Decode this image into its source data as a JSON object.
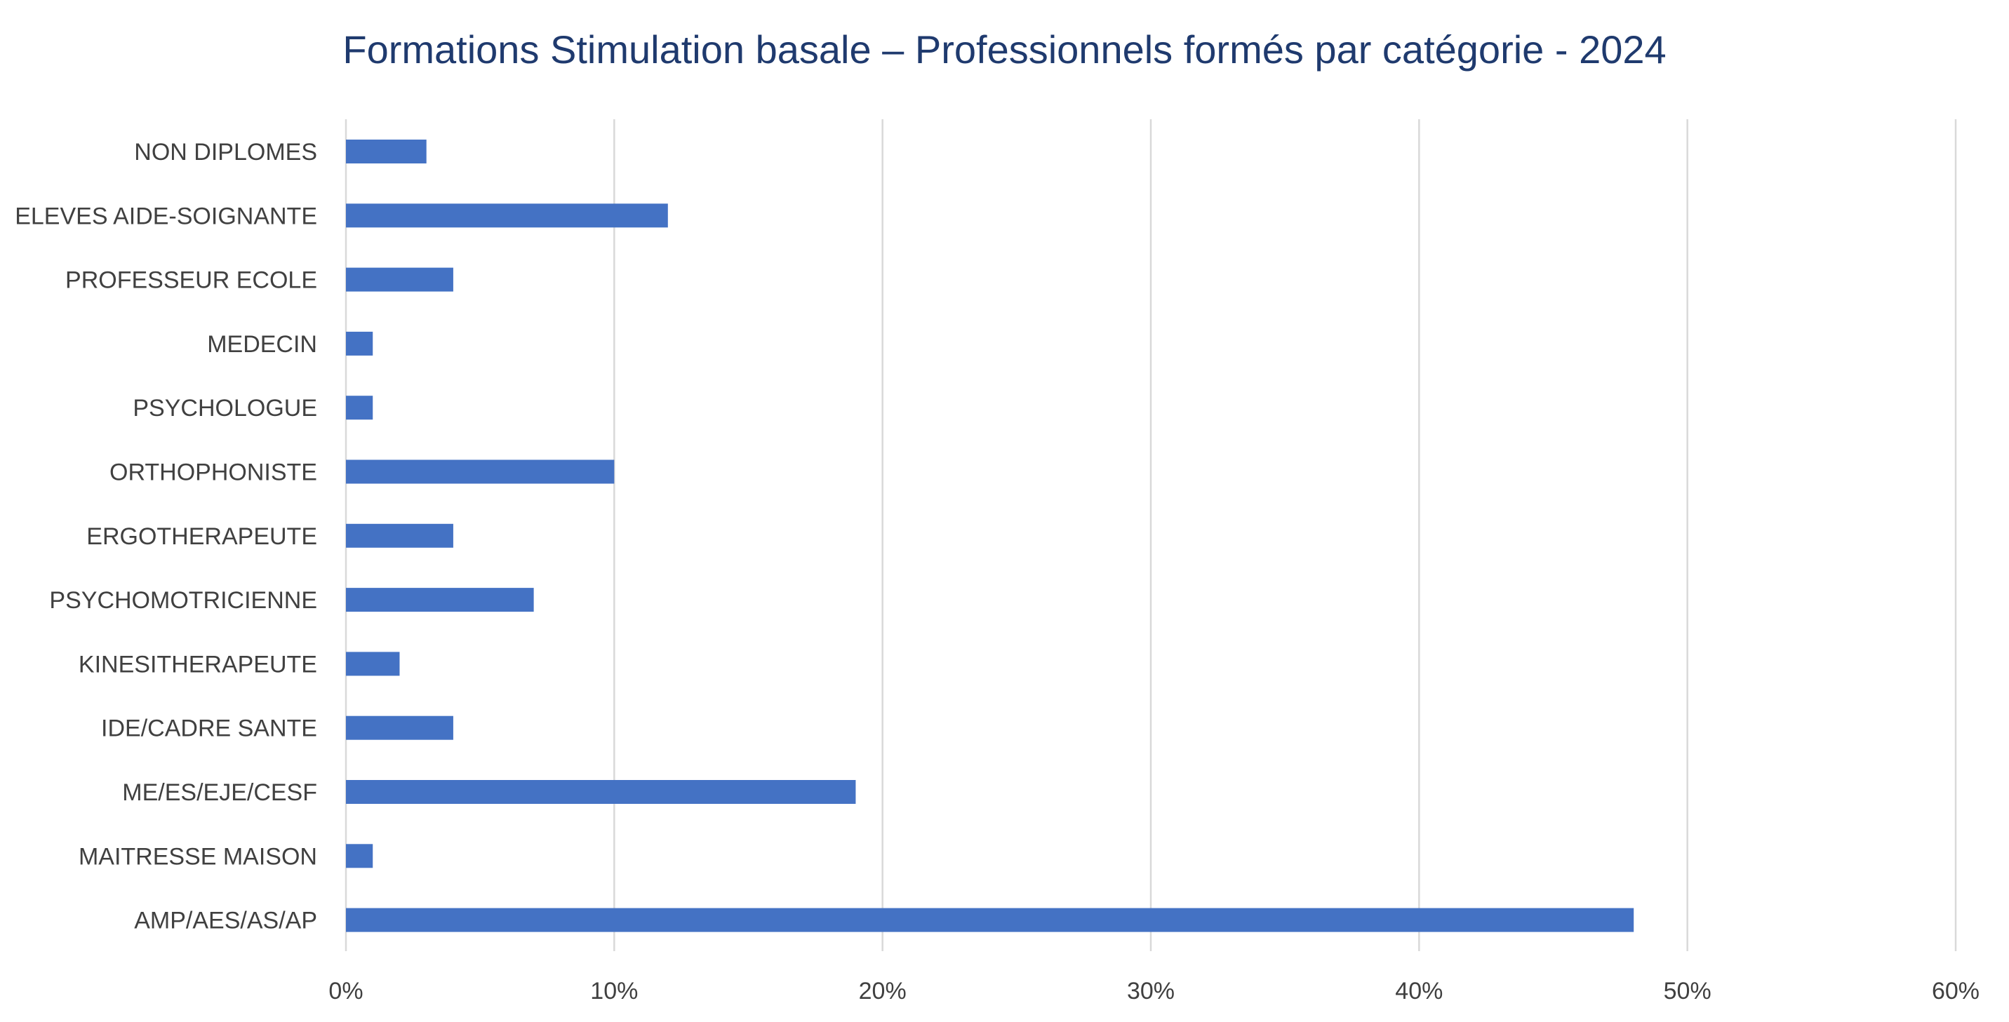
{
  "chart_data": {
    "type": "bar",
    "orientation": "horizontal",
    "title": "Formations Stimulation basale – Professionnels formés par catégorie - 2024",
    "categories": [
      "NON DIPLOMES",
      "ELEVES AIDE-SOIGNANTE",
      "PROFESSEUR ECOLE",
      "MEDECIN",
      "PSYCHOLOGUE",
      "ORTHOPHONISTE",
      "ERGOTHERAPEUTE",
      "PSYCHOMOTRICIENNE",
      "KINESITHERAPEUTE",
      "IDE/CADRE SANTE",
      "ME/ES/EJE/CESF",
      "MAITRESSE MAISON",
      "AMP/AES/AS/AP"
    ],
    "values": [
      3,
      12,
      4,
      1,
      1,
      10,
      4,
      7,
      2,
      4,
      19,
      1,
      48
    ],
    "value_unit": "%",
    "xlim": [
      0,
      60
    ],
    "x_ticks": [
      0,
      10,
      20,
      30,
      40,
      50,
      60
    ],
    "x_tick_labels": [
      "0%",
      "10%",
      "20%",
      "30%",
      "40%",
      "50%",
      "60%"
    ],
    "grid": "vertical",
    "legend": "none",
    "colors": {
      "bar": "#4472c4",
      "title": "#1f3a6e",
      "labels": "#404040",
      "grid": "#d9d9d9"
    }
  }
}
